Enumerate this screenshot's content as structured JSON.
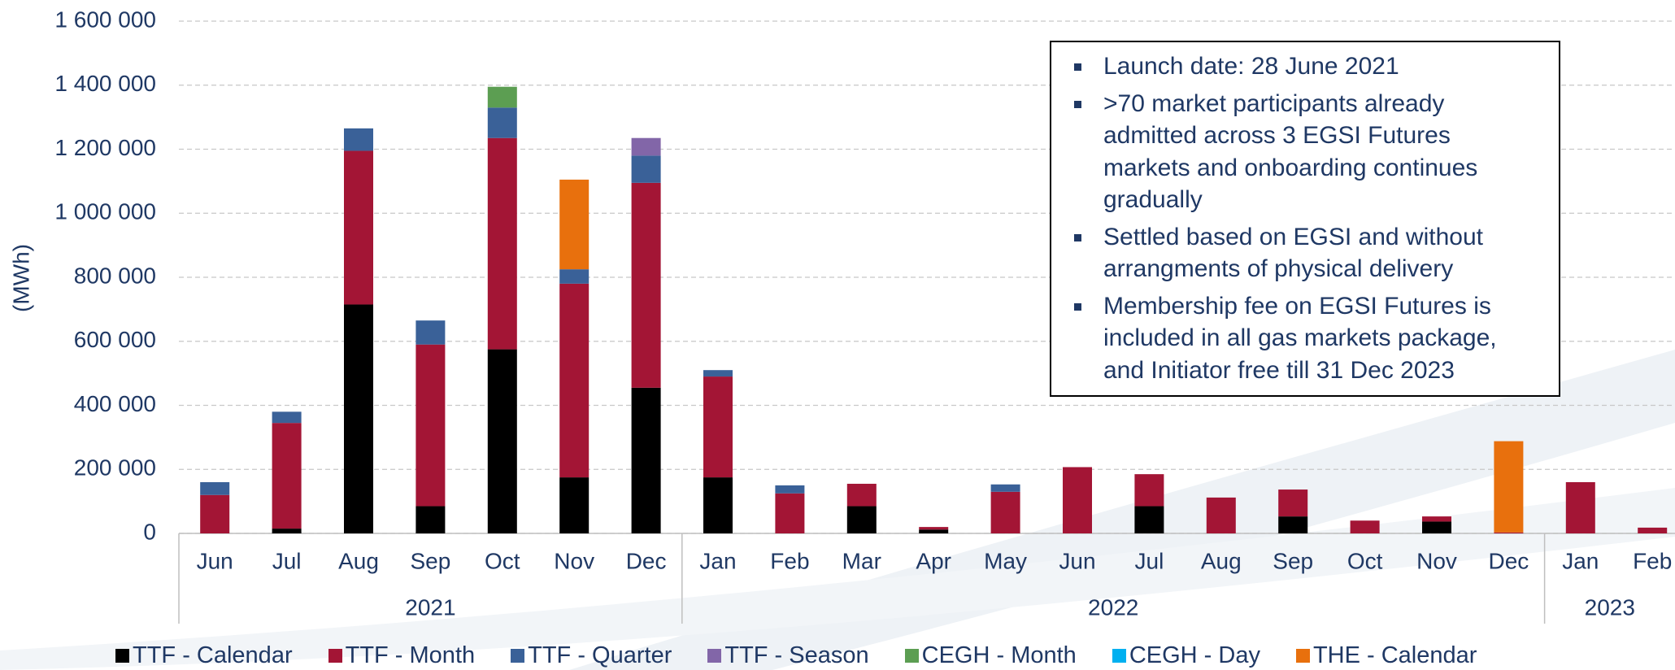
{
  "chart_data": {
    "type": "stacked-bar",
    "y_label": "(MWh)",
    "groups": [
      {
        "name": "2021",
        "categories": [
          "Jun",
          "Jul",
          "Aug",
          "Sep",
          "Oct",
          "Nov",
          "Dec"
        ]
      },
      {
        "name": "2022",
        "categories": [
          "Jan",
          "Feb",
          "Mar",
          "Apr",
          "May",
          "Jun",
          "Jul",
          "Aug",
          "Sep",
          "Oct",
          "Nov",
          "Dec"
        ]
      },
      {
        "name": "2023",
        "categories": [
          "Jan",
          "Feb"
        ]
      }
    ],
    "series": [
      {
        "name": "TTF - Calendar",
        "color": "#000000",
        "values": [
          0,
          15000,
          715000,
          85000,
          575000,
          175000,
          455000,
          175000,
          0,
          85000,
          12000,
          0,
          0,
          85000,
          0,
          53000,
          0,
          37000,
          0,
          0,
          0
        ]
      },
      {
        "name": "TTF - Month",
        "color": "#a31535",
        "values": [
          120000,
          330000,
          480000,
          505000,
          660000,
          605000,
          640000,
          315000,
          125000,
          70000,
          8000,
          130000,
          207000,
          100000,
          112000,
          84000,
          40000,
          16000,
          3000,
          160000,
          18000
        ]
      },
      {
        "name": "TTF - Quarter",
        "color": "#3a6198",
        "values": [
          40000,
          35000,
          70000,
          75000,
          95000,
          45000,
          85000,
          20000,
          25000,
          0,
          0,
          23000,
          0,
          0,
          0,
          0,
          0,
          0,
          0,
          0,
          0
        ]
      },
      {
        "name": "TTF - Season",
        "color": "#8266a8",
        "values": [
          0,
          0,
          0,
          0,
          0,
          0,
          55000,
          0,
          0,
          0,
          0,
          0,
          0,
          0,
          0,
          0,
          0,
          0,
          0,
          0,
          0
        ]
      },
      {
        "name": "CEGH - Month",
        "color": "#5c9e52",
        "values": [
          0,
          0,
          0,
          0,
          65000,
          0,
          0,
          0,
          0,
          0,
          0,
          0,
          0,
          0,
          0,
          0,
          0,
          0,
          0,
          0,
          0
        ]
      },
      {
        "name": "CEGH - Day",
        "color": "#00b0f0",
        "values": [
          0,
          0,
          0,
          0,
          0,
          0,
          0,
          0,
          0,
          0,
          0,
          0,
          0,
          0,
          0,
          0,
          0,
          0,
          0,
          0,
          0
        ]
      },
      {
        "name": "THE - Calendar",
        "color": "#e8700d",
        "values": [
          0,
          0,
          0,
          0,
          0,
          280000,
          0,
          0,
          0,
          0,
          0,
          0,
          0,
          0,
          0,
          0,
          0,
          0,
          285000,
          0,
          0
        ]
      }
    ],
    "ylim": [
      0,
      1600000
    ],
    "yticks": [
      0,
      {
        "value": 200000,
        "label": "200 000"
      },
      {
        "value": 400000,
        "label": "400 000"
      },
      {
        "value": 600000,
        "label": "600 000"
      },
      {
        "value": 800000,
        "label": "800 000"
      },
      {
        "value": 1000000,
        "label": "1 000 000"
      },
      {
        "value": 1200000,
        "label": "1 200 000"
      },
      {
        "value": 1400000,
        "label": "1 400 000"
      },
      {
        "value": 1600000,
        "label": "1 600 000"
      }
    ],
    "grid": true,
    "notes": [
      "Launch date: 28 June 2021",
      ">70 market participants already admitted across 3 EGSI Futures markets and onboarding continues gradually",
      "Settled based on EGSI and without arrangments of physical delivery",
      "Membership fee on EGSI Futures is included in all gas markets package, and Initiator free till 31 Dec 2023"
    ]
  }
}
